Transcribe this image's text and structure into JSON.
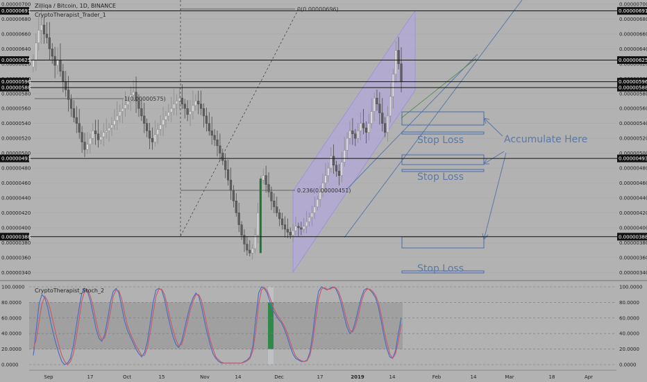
{
  "header": {
    "title": "Zilliqa / Bitcoin, 1D, BINANCE",
    "study_main": "CryptoTherapist_Trader_1",
    "study_sub": "CryptoTherapist_Stoch_2"
  },
  "chart_data": [
    {
      "type": "candlestick",
      "symbol": "ZIL/BTC",
      "interval": "1D",
      "exchange": "BINANCE",
      "ylim": [
        3.3e-06,
        7e-06
      ],
      "y_ticks": [
        "0.00000340",
        "0.00000360",
        "0.00000380",
        "0.00000400",
        "0.00000420",
        "0.00000440",
        "0.00000460",
        "0.00000480",
        "0.00000500",
        "0.00000520",
        "0.00000540",
        "0.00000560",
        "0.00000580",
        "0.00000600",
        "0.00000620",
        "0.00000640",
        "0.00000660",
        "0.00000680",
        "0.00000700"
      ],
      "x_ticks": [
        "Sep",
        "17",
        "Oct",
        "15",
        "Nov",
        "14",
        "Dec",
        "17",
        "2019",
        "14",
        "Feb",
        "14",
        "Mar",
        "18",
        "Apr"
      ],
      "horizontal_levels": [
        {
          "label": "0.00000691",
          "value": 6.91e-06
        },
        {
          "label": "0.00000625",
          "value": 6.25e-06
        },
        {
          "label": "0.00000596",
          "value": 5.96e-06
        },
        {
          "label": "0.00000588",
          "value": 5.88e-06
        },
        {
          "label": "0.00000493",
          "value": 4.93e-06
        },
        {
          "label": "0.00000388",
          "value": 3.88e-06
        }
      ],
      "fib_levels": [
        {
          "label": "0(0.00000696)",
          "value": 6.96e-06
        },
        {
          "label": "1(0.00000575)",
          "value": 5.75e-06
        },
        {
          "label": "0.236(0.00000451)",
          "value": 4.51e-06
        }
      ],
      "annotations": [
        "Accumulate Here",
        "Stop Loss",
        "Stop Loss",
        "Stop Loss"
      ],
      "closes": [
        6.25e-06,
        6.48e-06,
        6.65e-06,
        6.72e-06,
        6.6e-06,
        6.55e-06,
        6.4e-06,
        6.3e-06,
        6.18e-06,
        6.25e-06,
        6.1e-06,
        5.96e-06,
        5.85e-06,
        5.72e-06,
        5.6e-06,
        5.48e-06,
        5.4e-06,
        5.28e-06,
        5.15e-06,
        5.05e-06,
        5.12e-06,
        5.2e-06,
        5.3e-06,
        5.26e-06,
        5.18e-06,
        5.22e-06,
        5.28e-06,
        5.3e-06,
        5.34e-06,
        5.38e-06,
        5.44e-06,
        5.5e-06,
        5.56e-06,
        5.6e-06,
        5.65e-06,
        5.7e-06,
        5.78e-06,
        5.82e-06,
        5.7e-06,
        5.6e-06,
        5.5e-06,
        5.4e-06,
        5.3e-06,
        5.2e-06,
        5.15e-06,
        5.25e-06,
        5.32e-06,
        5.38e-06,
        5.45e-06,
        5.5e-06,
        5.55e-06,
        5.6e-06,
        5.66e-06,
        5.7e-06,
        5.74e-06,
        5.66e-06,
        5.6e-06,
        5.52e-06,
        5.56e-06,
        5.64e-06,
        5.7e-06,
        5.66e-06,
        5.6e-06,
        5.5e-06,
        5.4e-06,
        5.3e-06,
        5.24e-06,
        5.18e-06,
        5.1e-06,
        5e-06,
        4.9e-06,
        4.78e-06,
        4.64e-06,
        4.5e-06,
        4.36e-06,
        4.2e-06,
        4.04e-06,
        3.9e-06,
        3.78e-06,
        3.7e-06,
        3.66e-06,
        3.72e-06,
        3.9e-06,
        4.2e-06,
        4.64e-06,
        4.7e-06,
        4.58e-06,
        4.48e-06,
        4.36e-06,
        4.28e-06,
        4.2e-06,
        4.12e-06,
        4.04e-06,
        3.98e-06,
        3.94e-06,
        3.9e-06,
        3.96e-06,
        4.02e-06,
        4e-06,
        3.98e-06,
        4.02e-06,
        4.08e-06,
        4.14e-06,
        4.2e-06,
        4.28e-06,
        4.38e-06,
        4.48e-06,
        4.6e-06,
        4.7e-06,
        4.8e-06,
        4.96e-06,
        4.84e-06,
        4.76e-06,
        4.7e-06,
        4.88e-06,
        5.04e-06,
        5.2e-06,
        5.3e-06,
        5.26e-06,
        5.2e-06,
        5.3e-06,
        5.4e-06,
        5.34e-06,
        5.28e-06,
        5.4e-06,
        5.56e-06,
        5.74e-06,
        5.66e-06,
        5.54e-06,
        5.4e-06,
        5.28e-06,
        5.5e-06,
        5.76e-06,
        6.06e-06,
        6.38e-06,
        6.2e-06,
        5.96e-06
      ]
    },
    {
      "type": "line",
      "name": "CryptoTherapist_Stoch_2",
      "ylim": [
        0,
        100
      ],
      "y_ticks": [
        "0.0000",
        "20.0000",
        "40.0000",
        "60.0000",
        "80.0000",
        "100.0000"
      ],
      "band": [
        20,
        80
      ],
      "series": [
        {
          "name": "K",
          "color": "#4a6fc0",
          "values": [
            12,
            45,
            78,
            90,
            86,
            74,
            56,
            40,
            26,
            14,
            4,
            0,
            2,
            8,
            24,
            48,
            72,
            92,
            98,
            94,
            82,
            64,
            46,
            34,
            30,
            38,
            58,
            80,
            94,
            98,
            92,
            74,
            56,
            44,
            36,
            28,
            20,
            14,
            10,
            16,
            30,
            54,
            80,
            96,
            98,
            96,
            84,
            66,
            50,
            36,
            26,
            22,
            30,
            46,
            62,
            76,
            86,
            92,
            88,
            74,
            56,
            40,
            26,
            14,
            8,
            4,
            2,
            2,
            2,
            2,
            2,
            2,
            2,
            2,
            4,
            6,
            10,
            24,
            60,
            92,
            100,
            98,
            92,
            80,
            70,
            64,
            58,
            54,
            46,
            36,
            24,
            14,
            8,
            6,
            4,
            4,
            6,
            16,
            40,
            72,
            94,
            100,
            98,
            96,
            98,
            100,
            98,
            90,
            78,
            62,
            48,
            40,
            44,
            56,
            72,
            86,
            96,
            98,
            96,
            92,
            86,
            74,
            56,
            36,
            20,
            10,
            8,
            18,
            40,
            60
          ]
        },
        {
          "name": "D",
          "color": "#c85c6c",
          "values": [
            20,
            32,
            56,
            78,
            88,
            82,
            70,
            54,
            38,
            24,
            12,
            4,
            0,
            4,
            14,
            34,
            58,
            82,
            95,
            96,
            88,
            74,
            56,
            40,
            32,
            34,
            48,
            68,
            88,
            96,
            95,
            84,
            66,
            50,
            40,
            32,
            24,
            18,
            12,
            12,
            22,
            42,
            66,
            88,
            97,
            97,
            90,
            76,
            58,
            44,
            32,
            24,
            26,
            38,
            54,
            70,
            82,
            90,
            90,
            82,
            66,
            48,
            32,
            20,
            10,
            6,
            3,
            2,
            2,
            2,
            2,
            2,
            2,
            2,
            3,
            5,
            8,
            18,
            44,
            78,
            96,
            99,
            95,
            86,
            75,
            67,
            61,
            56,
            50,
            41,
            30,
            19,
            11,
            7,
            5,
            4,
            5,
            12,
            30,
            58,
            84,
            97,
            99,
            97,
            97,
            99,
            99,
            94,
            84,
            70,
            55,
            44,
            42,
            50,
            64,
            80,
            92,
            97,
            97,
            94,
            89,
            80,
            64,
            44,
            28,
            14,
            8,
            14,
            30,
            52
          ]
        }
      ]
    }
  ]
}
